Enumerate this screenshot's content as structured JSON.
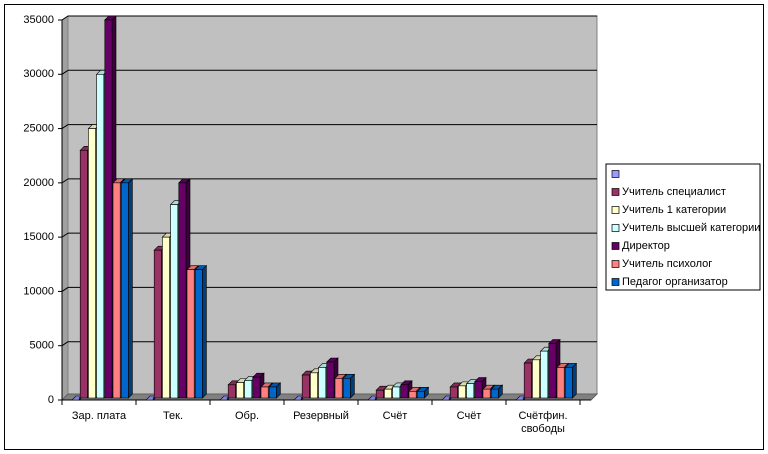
{
  "chart_data": {
    "type": "bar",
    "categories": [
      "Зар. плата",
      "Тек.",
      "Обр.",
      "Резервный",
      "Счёт",
      "Счёт",
      "Счётфин. свободы"
    ],
    "series": [
      {
        "name": null,
        "color": "#9999FF",
        "values": [
          0,
          0,
          0,
          0,
          0,
          0,
          0
        ]
      },
      {
        "name": "Учитель специалист",
        "color": "#993366",
        "values": [
          23000,
          13800,
          1400,
          2300,
          900,
          1200,
          3400
        ]
      },
      {
        "name": "Учитель 1 категории",
        "color": "#FFFFCC",
        "values": [
          25000,
          15000,
          1600,
          2500,
          1000,
          1300,
          3700
        ]
      },
      {
        "name": "Учитель высшей категории",
        "color": "#CCFFFF",
        "values": [
          30000,
          18000,
          1800,
          3000,
          1200,
          1500,
          4500
        ]
      },
      {
        "name": "Директор",
        "color": "#660066",
        "values": [
          35000,
          20000,
          2100,
          3500,
          1400,
          1700,
          5200
        ]
      },
      {
        "name": "Учитель психолог",
        "color": "#FF8080",
        "values": [
          20000,
          12000,
          1200,
          2000,
          800,
          1000,
          3000
        ]
      },
      {
        "name": "Педагог организатор",
        "color": "#0066CC",
        "values": [
          20000,
          12000,
          1200,
          2000,
          800,
          1000,
          3000
        ]
      }
    ],
    "ylim": [
      0,
      35000
    ],
    "yticks": [
      0,
      5000,
      10000,
      15000,
      20000,
      25000,
      30000,
      35000
    ],
    "grid": true,
    "legend": "right"
  }
}
